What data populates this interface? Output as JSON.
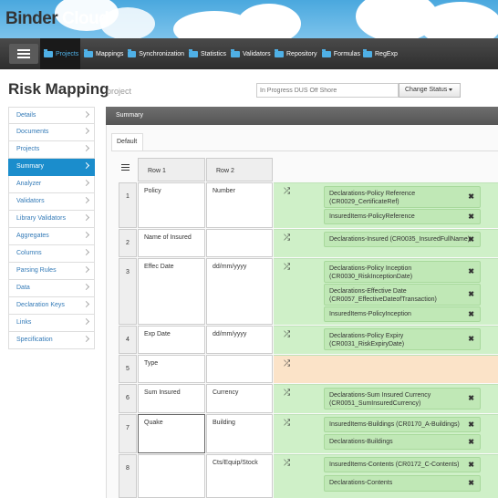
{
  "header": {
    "logo_part1": "Binder",
    "logo_part2": "Cloud"
  },
  "nav": {
    "items": [
      {
        "label": "Projects"
      },
      {
        "label": "Mappings"
      },
      {
        "label": "Synchronization"
      },
      {
        "label": "Statistics"
      },
      {
        "label": "Validators"
      },
      {
        "label": "Repository"
      },
      {
        "label": "Formulas"
      },
      {
        "label": "RegExp"
      }
    ]
  },
  "page": {
    "title": "Risk Mapping",
    "subtitle": "project"
  },
  "status": {
    "placeholder": "In Progress DUS Off Shore",
    "button": "Change Status"
  },
  "sidebar": {
    "items": [
      {
        "label": "Details"
      },
      {
        "label": "Documents"
      },
      {
        "label": "Projects"
      },
      {
        "label": "Summary"
      },
      {
        "label": "Analyzer"
      },
      {
        "label": "Validators"
      },
      {
        "label": "Library Validators"
      },
      {
        "label": "Aggregates"
      },
      {
        "label": "Columns"
      },
      {
        "label": "Parsing Rules"
      },
      {
        "label": "Data"
      },
      {
        "label": "Declaration Keys"
      },
      {
        "label": "Links"
      },
      {
        "label": "Specification"
      }
    ]
  },
  "panel": {
    "title": "Summary",
    "tab": "Default"
  },
  "table": {
    "headers": [
      "Row 1",
      "Row 2"
    ],
    "rows": [
      {
        "num": "1",
        "col1": "Policy",
        "col2": "Number",
        "mappings": [
          "Declarations-Policy Reference (CR0029_CertificateRef)",
          "InsuredItems-PolicyReference"
        ]
      },
      {
        "num": "2",
        "col1": "Name of Insured",
        "col2": "",
        "mappings": [
          "Declarations-Insured (CR0035_InsuredFullName)"
        ]
      },
      {
        "num": "3",
        "col1": "Effec Date",
        "col2": "dd/mm/yyyy",
        "mappings": [
          "Declarations-Policy Inception (CR0030_RiskInceptionDate)",
          "Declarations-Effective Date (CR0057_EffectiveDateofTransaction)",
          "InsuredItems-PolicyInception"
        ]
      },
      {
        "num": "4",
        "col1": "Exp Date",
        "col2": "dd/mm/yyyy",
        "mappings": [
          "Declarations-Policy Expiry (CR0031_RiskExpiryDate)"
        ]
      },
      {
        "num": "5",
        "col1": "Type",
        "col2": "",
        "mappings": []
      },
      {
        "num": "6",
        "col1": "Sum Insured",
        "col2": "Currency",
        "mappings": [
          "Declarations-Sum Insured Currency (CR0051_SumInsuredCurrency)"
        ]
      },
      {
        "num": "7",
        "col1": "Quake",
        "col2": "Building",
        "mappings": [
          "InsuredItems-Buildings (CR0170_A-Buildings)",
          "Declarations-Buildings"
        ]
      },
      {
        "num": "8",
        "col1": "",
        "col2": "Cts/Equip/Stock",
        "mappings": [
          "InsuredItems-Contents (CR0172_C-Contents)",
          "Declarations-Contents"
        ]
      }
    ]
  },
  "icons": {
    "shuffle": "shuffle-icon",
    "remove": "close-icon",
    "menu": "hamburger-icon",
    "columns": "list-icon"
  },
  "colors": {
    "accent": "#1b8dcc",
    "mapped": "#cff0c8",
    "chip": "#c0e8b6",
    "unmapped": "#fbe3c8",
    "navbar": "#333333"
  }
}
